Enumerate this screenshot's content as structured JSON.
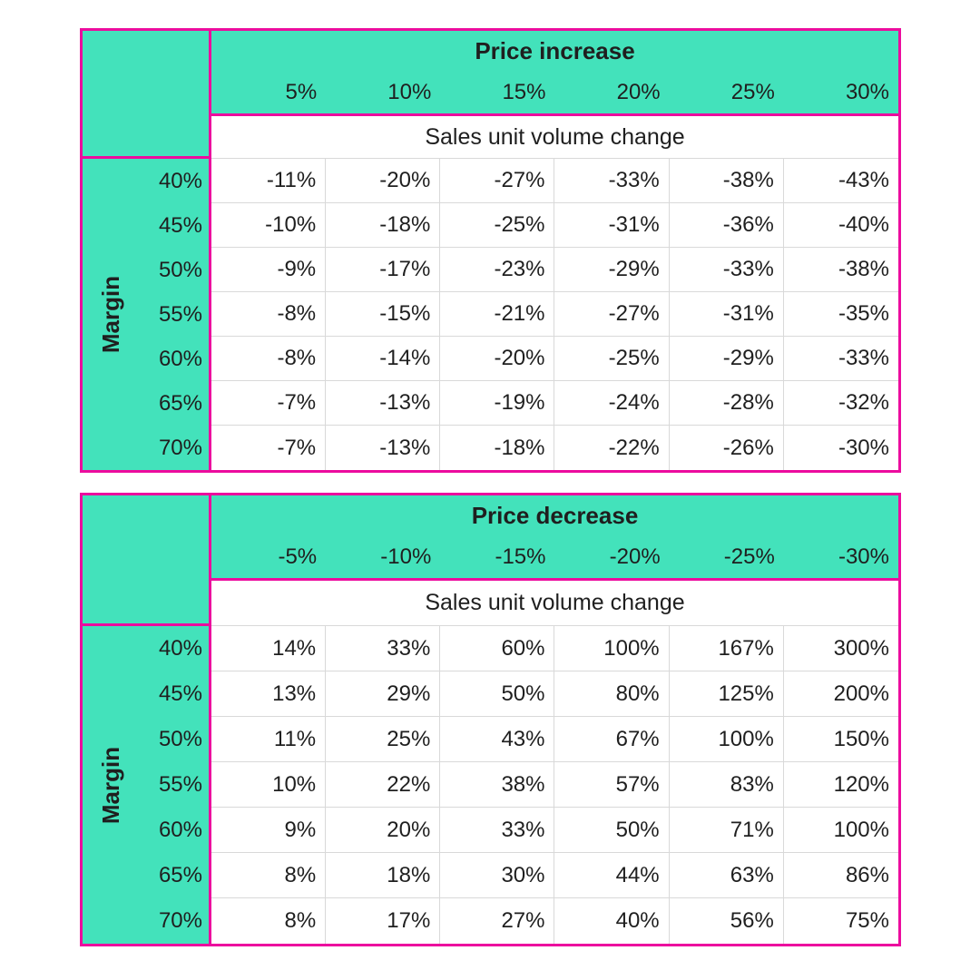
{
  "colors": {
    "header_fill": "#43E2BB",
    "table_border": "#EC0C9E",
    "gridline": "#D9D9D9",
    "text": "#1F1F1F"
  },
  "chart_data": [
    {
      "type": "table",
      "title": "Price increase",
      "subtitle": "Sales unit volume change",
      "row_axis_label": "Margin",
      "col_headers": [
        "5%",
        "10%",
        "15%",
        "20%",
        "25%",
        "30%"
      ],
      "row_headers": [
        "40%",
        "45%",
        "50%",
        "55%",
        "60%",
        "65%",
        "70%"
      ],
      "rows": [
        [
          "-11%",
          "-20%",
          "-27%",
          "-33%",
          "-38%",
          "-43%"
        ],
        [
          "-10%",
          "-18%",
          "-25%",
          "-31%",
          "-36%",
          "-40%"
        ],
        [
          "-9%",
          "-17%",
          "-23%",
          "-29%",
          "-33%",
          "-38%"
        ],
        [
          "-8%",
          "-15%",
          "-21%",
          "-27%",
          "-31%",
          "-35%"
        ],
        [
          "-8%",
          "-14%",
          "-20%",
          "-25%",
          "-29%",
          "-33%"
        ],
        [
          "-7%",
          "-13%",
          "-19%",
          "-24%",
          "-28%",
          "-32%"
        ],
        [
          "-7%",
          "-13%",
          "-18%",
          "-22%",
          "-26%",
          "-30%"
        ]
      ]
    },
    {
      "type": "table",
      "title": "Price decrease",
      "subtitle": "Sales unit volume change",
      "row_axis_label": "Margin",
      "col_headers": [
        "-5%",
        "-10%",
        "-15%",
        "-20%",
        "-25%",
        "-30%"
      ],
      "row_headers": [
        "40%",
        "45%",
        "50%",
        "55%",
        "60%",
        "65%",
        "70%"
      ],
      "rows": [
        [
          "14%",
          "33%",
          "60%",
          "100%",
          "167%",
          "300%"
        ],
        [
          "13%",
          "29%",
          "50%",
          "80%",
          "125%",
          "200%"
        ],
        [
          "11%",
          "25%",
          "43%",
          "67%",
          "100%",
          "150%"
        ],
        [
          "10%",
          "22%",
          "38%",
          "57%",
          "83%",
          "120%"
        ],
        [
          "9%",
          "20%",
          "33%",
          "50%",
          "71%",
          "100%"
        ],
        [
          "8%",
          "18%",
          "30%",
          "44%",
          "63%",
          "86%"
        ],
        [
          "8%",
          "17%",
          "27%",
          "40%",
          "56%",
          "75%"
        ]
      ]
    }
  ]
}
